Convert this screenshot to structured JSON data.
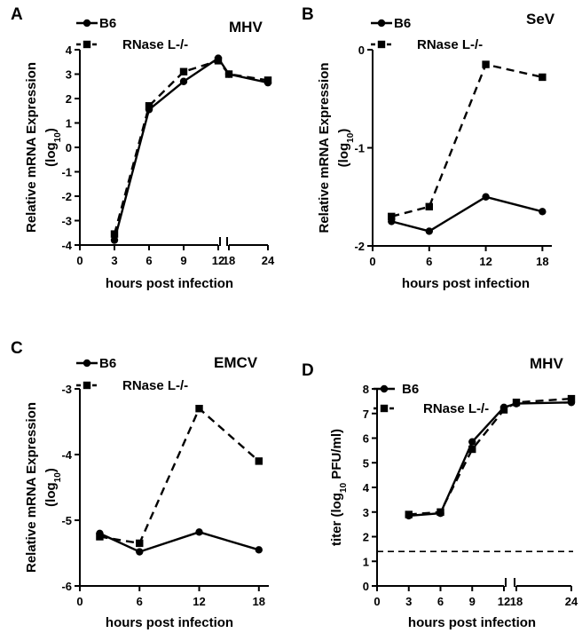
{
  "chart_data": [
    {
      "type": "line",
      "panel": "A",
      "virus": "MHV",
      "ylabel_line1": "Relative mRNA Expression",
      "ylabel_line2": "(log",
      "ylabel_sub": "10",
      "ylabel_close": ")",
      "xlabel": "hours post infection",
      "x_ticks": [
        "0",
        "3",
        "6",
        "9",
        "12",
        "18",
        "24"
      ],
      "x_tick_values": [
        0,
        3,
        6,
        9,
        12,
        18,
        24
      ],
      "y_ticks": [
        "-4",
        "-3",
        "-2",
        "-1",
        "0",
        "1",
        "2",
        "3",
        "4"
      ],
      "ylim": [
        -4,
        4
      ],
      "axis_break": true,
      "legend": "top-left",
      "series": [
        {
          "name": "B6",
          "marker": "circle",
          "dash": false,
          "x": [
            3,
            6,
            9,
            12,
            18,
            24
          ],
          "values": [
            -3.8,
            1.55,
            2.7,
            3.65,
            3.0,
            2.65
          ]
        },
        {
          "name": "RNase L-/-",
          "marker": "square",
          "dash": true,
          "x": [
            3,
            6,
            9,
            12,
            18,
            24
          ],
          "values": [
            -3.55,
            1.7,
            3.1,
            3.55,
            3.0,
            2.75
          ]
        }
      ]
    },
    {
      "type": "line",
      "panel": "B",
      "virus": "SeV",
      "ylabel_line1": "Relative mRNA Expression",
      "ylabel_line2": "(log",
      "ylabel_sub": "10",
      "ylabel_close": ")",
      "xlabel": "hours post infection",
      "x_ticks": [
        "0",
        "6",
        "12",
        "18"
      ],
      "x_tick_values": [
        0,
        6,
        12,
        18
      ],
      "y_ticks": [
        "-2",
        "-1",
        "0"
      ],
      "ylim": [
        -2,
        0
      ],
      "axis_break": false,
      "legend": "top-left",
      "series": [
        {
          "name": "B6",
          "marker": "circle",
          "dash": false,
          "x": [
            2,
            6,
            12,
            18
          ],
          "values": [
            -1.75,
            -1.85,
            -1.5,
            -1.65
          ]
        },
        {
          "name": "RNase L-/-",
          "marker": "square",
          "dash": true,
          "x": [
            2,
            6,
            12,
            18
          ],
          "values": [
            -1.7,
            -1.6,
            -0.15,
            -0.28
          ]
        }
      ]
    },
    {
      "type": "line",
      "panel": "C",
      "virus": "EMCV",
      "ylabel_line1": "Relative mRNA Expression",
      "ylabel_line2": "(log",
      "ylabel_sub": "10",
      "ylabel_close": ")",
      "xlabel": "hours post infection",
      "x_ticks": [
        "0",
        "6",
        "12",
        "18"
      ],
      "x_tick_values": [
        0,
        6,
        12,
        18
      ],
      "y_ticks": [
        "-6",
        "-5",
        "-4",
        "-3"
      ],
      "ylim": [
        -6,
        -3
      ],
      "axis_break": false,
      "legend": "top-left",
      "series": [
        {
          "name": "B6",
          "marker": "circle",
          "dash": false,
          "x": [
            2,
            6,
            12,
            18
          ],
          "values": [
            -5.2,
            -5.48,
            -5.18,
            -5.45
          ]
        },
        {
          "name": "RNase L-/-",
          "marker": "square",
          "dash": true,
          "x": [
            2,
            6,
            12,
            18
          ],
          "values": [
            -5.25,
            -5.35,
            -3.3,
            -4.1
          ]
        }
      ]
    },
    {
      "type": "line",
      "panel": "D",
      "virus": "MHV",
      "ylabel_line1": "titer (log",
      "ylabel_sub": "10",
      "ylabel_close": " PFU/ml)",
      "xlabel": "hours post infection",
      "x_ticks": [
        "0",
        "3",
        "6",
        "9",
        "12",
        "18",
        "24"
      ],
      "x_tick_values": [
        0,
        3,
        6,
        9,
        12,
        18,
        24
      ],
      "y_ticks": [
        "0",
        "1",
        "2",
        "3",
        "4",
        "5",
        "6",
        "7",
        "8"
      ],
      "ylim": [
        0,
        8
      ],
      "axis_break": true,
      "detection_limit": 1.4,
      "legend": "top-left",
      "series": [
        {
          "name": "B6",
          "marker": "circle",
          "dash": false,
          "x": [
            3,
            6,
            9,
            12,
            18,
            24
          ],
          "values": [
            2.85,
            2.95,
            5.85,
            7.25,
            7.4,
            7.45
          ]
        },
        {
          "name": "RNase L-/-",
          "marker": "square",
          "dash": true,
          "x": [
            3,
            6,
            9,
            12,
            18,
            24
          ],
          "values": [
            2.9,
            3.0,
            5.55,
            7.15,
            7.45,
            7.6
          ]
        }
      ]
    }
  ]
}
